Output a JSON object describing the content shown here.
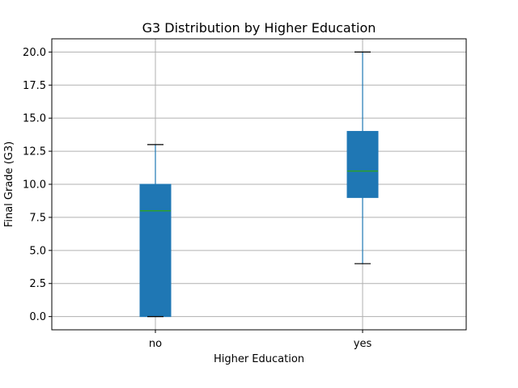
{
  "chart_data": {
    "type": "box",
    "title": "G3 Distribution by Higher Education",
    "xlabel": "Higher Education",
    "ylabel": "Final Grade (G3)",
    "ylim": [
      -1,
      21
    ],
    "yticks": [
      "0.0",
      "2.5",
      "5.0",
      "7.5",
      "10.0",
      "12.5",
      "15.0",
      "17.5",
      "20.0"
    ],
    "categories": [
      "no",
      "yes"
    ],
    "boxes": [
      {
        "category": "no",
        "whisker_low": 0,
        "q1": 0,
        "median": 8,
        "q3": 10,
        "whisker_high": 13
      },
      {
        "category": "yes",
        "whisker_low": 4,
        "q1": 9,
        "median": 11,
        "q3": 14,
        "whisker_high": 20
      }
    ],
    "grid": true,
    "colors": {
      "box": "#1f77b4",
      "median": "#2ca02c",
      "whisker": "#1f77b4",
      "cap": "#000000",
      "grid": "#b0b0b0"
    }
  }
}
